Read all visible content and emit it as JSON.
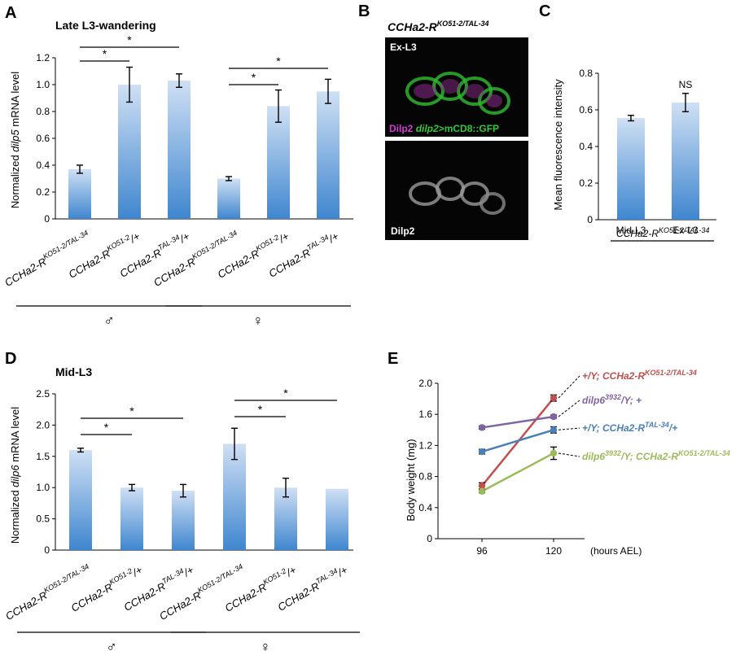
{
  "panel_labels": {
    "a": "A",
    "b": "B",
    "c": "C",
    "d": "D",
    "e": "E"
  },
  "colors": {
    "bar_top": "#cfe0f4",
    "bar_bottom": "#3f86cf",
    "series_red": "#c0504d",
    "series_purple": "#8064a2",
    "series_blue": "#4a7fb8",
    "series_green": "#9bbb59",
    "gfp": "#35c735",
    "dilp2": "#d43ad4"
  },
  "panel_b": {
    "title_base": "CCHa2-R",
    "title_sup": "KO51-2/TAL-34",
    "top_label": "Ex-L3",
    "legend_dilp2": "Dilp2",
    "legend_driver": "dilp2",
    "legend_reporter": ">mCD8::GFP",
    "bottom_label": "Dilp2"
  },
  "chart_data": [
    {
      "id": "A",
      "type": "bar",
      "title": "Late L3-wandering",
      "ylabel_pre": "Normalized ",
      "ylabel_gene": "dilp5",
      "ylabel_post": " mRNA level",
      "ylim": [
        0,
        1.2
      ],
      "yticks": [
        "0",
        "0.2",
        "0.4",
        "0.6",
        "0.8",
        "1.0",
        "1.2"
      ],
      "categories": [
        {
          "base": "CCHa2-R",
          "sup": "KO51-2/TAL-34",
          "tail": ""
        },
        {
          "base": "CCHa2-R",
          "sup": "KO51-2",
          "tail": "/+"
        },
        {
          "base": "CCHa2-R",
          "sup": "TAL-34",
          "tail": "/+"
        },
        {
          "base": "CCHa2-R",
          "sup": "KO51-2/TAL-34",
          "tail": ""
        },
        {
          "base": "CCHa2-R",
          "sup": "KO51-2",
          "tail": "/+"
        },
        {
          "base": "CCHa2-R",
          "sup": "TAL-34",
          "tail": "/+"
        }
      ],
      "values": [
        0.37,
        1.0,
        1.03,
        0.3,
        0.84,
        0.95
      ],
      "errors": [
        0.03,
        0.13,
        0.05,
        0.015,
        0.12,
        0.09
      ],
      "significance": [
        {
          "from": 0,
          "to": 1,
          "label": "*"
        },
        {
          "from": 0,
          "to": 2,
          "label": "*"
        },
        {
          "from": 3,
          "to": 4,
          "label": "*"
        },
        {
          "from": 3,
          "to": 5,
          "label": "*"
        }
      ],
      "groups": [
        {
          "label": "♂",
          "start": 0,
          "end": 2
        },
        {
          "label": "♀",
          "start": 3,
          "end": 5
        }
      ]
    },
    {
      "id": "C",
      "type": "bar",
      "ylabel": "Mean fluorescence intensity",
      "ylim": [
        0,
        0.8
      ],
      "yticks": [
        "0",
        "0.2",
        "0.4",
        "0.6",
        "0.8"
      ],
      "categories": [
        "Mid-L3",
        "Ex-L3"
      ],
      "values": [
        0.555,
        0.64
      ],
      "errors": [
        0.015,
        0.05
      ],
      "annotation": "NS",
      "group_label": {
        "base": "CCHa2-R",
        "sup": "KO51-2/TAL-34"
      }
    },
    {
      "id": "D",
      "type": "bar",
      "title": "Mid-L3",
      "ylabel_pre": "Normalized ",
      "ylabel_gene": "dilp6",
      "ylabel_post": " mRNA level",
      "ylim": [
        0,
        2.5
      ],
      "yticks": [
        "0",
        "0.5",
        "1.0",
        "1.5",
        "2.0",
        "2.5"
      ],
      "categories": [
        {
          "base": "CCHa2-R",
          "sup": "KO51-2/TAL-34",
          "tail": ""
        },
        {
          "base": "CCHa2-R",
          "sup": "KO51-2",
          "tail": "/+"
        },
        {
          "base": "CCHa2-R",
          "sup": "TAL-34",
          "tail": "/+"
        },
        {
          "base": "CCHa2-R",
          "sup": "KO51-2/TAL-34",
          "tail": ""
        },
        {
          "base": "CCHa2-R",
          "sup": "KO51-2",
          "tail": "/+"
        },
        {
          "base": "CCHa2-R",
          "sup": "TAL-34",
          "tail": "/+"
        }
      ],
      "values": [
        1.6,
        1.0,
        0.95,
        1.7,
        1.0,
        0.98
      ],
      "errors": [
        0.03,
        0.05,
        0.1,
        0.25,
        0.15,
        0
      ],
      "significance": [
        {
          "from": 0,
          "to": 1,
          "label": "*"
        },
        {
          "from": 0,
          "to": 2,
          "label": "*"
        },
        {
          "from": 3,
          "to": 4,
          "label": "*"
        },
        {
          "from": 3,
          "to": 5,
          "label": "*"
        }
      ],
      "groups": [
        {
          "label": "♂",
          "start": 0,
          "end": 2
        },
        {
          "label": "♀",
          "start": 3,
          "end": 5
        }
      ]
    },
    {
      "id": "E",
      "type": "line",
      "ylabel": "Body weight (mg)",
      "ylim": [
        0,
        2.0
      ],
      "yticks": [
        "0",
        "0.4",
        "0.8",
        "1.2",
        "1.6",
        "2.0"
      ],
      "x": [
        "96",
        "120"
      ],
      "xunit": "(hours AEL)",
      "series": [
        {
          "name": "+/Y; CCHa2-R",
          "sup": "KO51-2/TAL-34",
          "tail": "",
          "color": "#c0504d",
          "values": [
            0.68,
            1.81
          ],
          "errors": [
            0.04,
            0.04
          ]
        },
        {
          "name": "dilp6",
          "sup": "3932",
          "tail": "/Y; +",
          "color": "#8064a2",
          "values": [
            1.43,
            1.57
          ],
          "errors": [
            0.02,
            0.02
          ]
        },
        {
          "name": "+/Y; CCHa2-R",
          "sup": "TAL-34",
          "tail": "/+",
          "color": "#4a7fb8",
          "values": [
            1.12,
            1.4
          ],
          "errors": [
            0.03,
            0.04
          ]
        },
        {
          "name": "dilp6",
          "sup": "3932",
          "tail": "/Y; CCHa2-R",
          "sup2": "KO51-2/TAL-34",
          "color": "#9bbb59",
          "values": [
            0.61,
            1.1
          ],
          "errors": [
            0.02,
            0.08
          ]
        }
      ]
    }
  ]
}
